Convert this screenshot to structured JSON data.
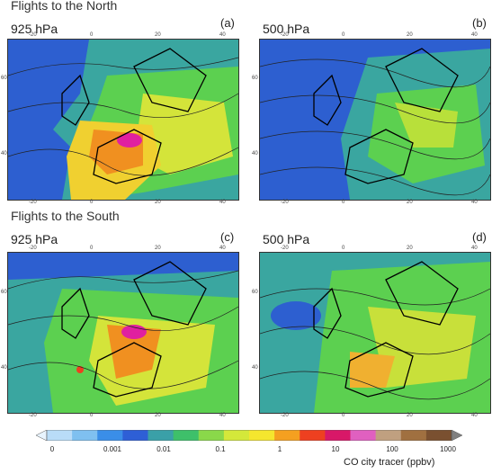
{
  "sections": {
    "north_title": "Flights to the North",
    "south_title": "Flights to the South"
  },
  "panels": [
    {
      "letter": "(a)",
      "level": "925 hPa"
    },
    {
      "letter": "(b)",
      "level": "500 hPa"
    },
    {
      "letter": "(c)",
      "level": "925 hPa"
    },
    {
      "letter": "(d)",
      "level": "500 hPa"
    }
  ],
  "axes": {
    "lon_ticks": [
      "-20",
      "0",
      "20",
      "40"
    ],
    "lat_ticks": [
      "60",
      "40"
    ]
  },
  "colorbar": {
    "labels": [
      "0",
      "0.001",
      "0.01",
      "0.1",
      "1",
      "10",
      "100",
      "1000"
    ],
    "title": "CO city tracer (ppbv)",
    "colors": [
      "#e8f4ff",
      "#b9dcf8",
      "#7fc0f0",
      "#3a8ee8",
      "#2e5fd6",
      "#3aa0a8",
      "#3ec06a",
      "#8ad84a",
      "#d4e83a",
      "#f5e62e",
      "#f5a020",
      "#ee4020",
      "#d81868",
      "#e060c0",
      "#c0a080",
      "#a07040",
      "#7a5030",
      "#808080"
    ]
  },
  "map_colors": {
    "ocean": "#2d5fd0",
    "low": "#2fb0a0",
    "mid": "#5cd050",
    "high": "#e8e040",
    "peak": "#ee5020",
    "max": "#e020a0"
  }
}
